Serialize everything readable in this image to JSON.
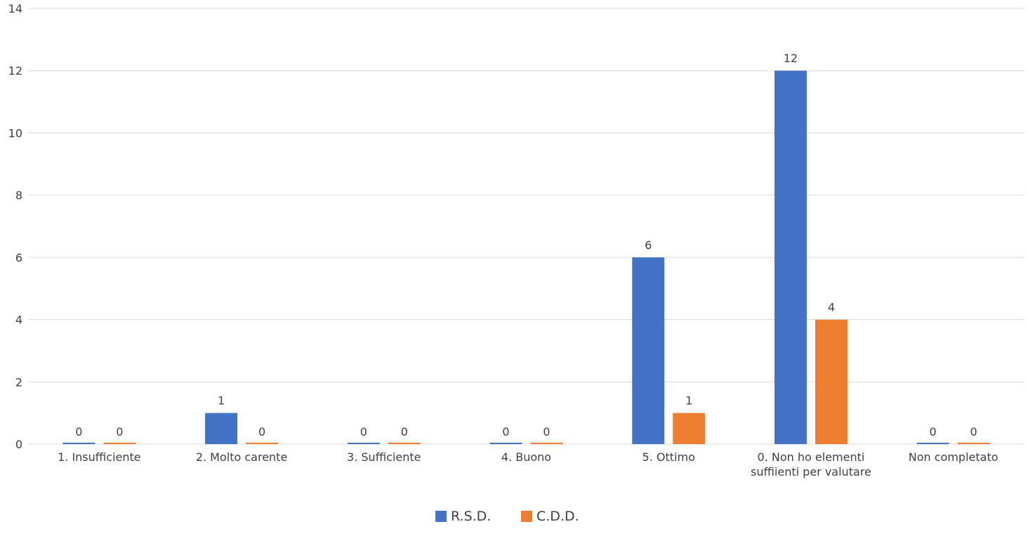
{
  "chart_data": {
    "type": "bar",
    "categories": [
      [
        "1. Insufficiente"
      ],
      [
        "2. Molto carente"
      ],
      [
        "3. Sufficiente"
      ],
      [
        "4. Buono"
      ],
      [
        "5. Ottimo"
      ],
      [
        "0. Non ho elementi",
        "suffiienti per valutare"
      ],
      [
        "Non completato"
      ]
    ],
    "series": [
      {
        "name": "R.S.D.",
        "color": "#4472C4",
        "values": [
          0,
          1,
          0,
          0,
          6,
          12,
          0
        ]
      },
      {
        "name": "C.D.D.",
        "color": "#ED7D31",
        "values": [
          0,
          0,
          0,
          0,
          1,
          4,
          0
        ]
      }
    ],
    "ylim": [
      0,
      14
    ],
    "yticks": [
      0,
      2,
      4,
      6,
      8,
      10,
      12,
      14
    ],
    "grid": true,
    "data_labels": true,
    "legend": "bottom-center"
  }
}
